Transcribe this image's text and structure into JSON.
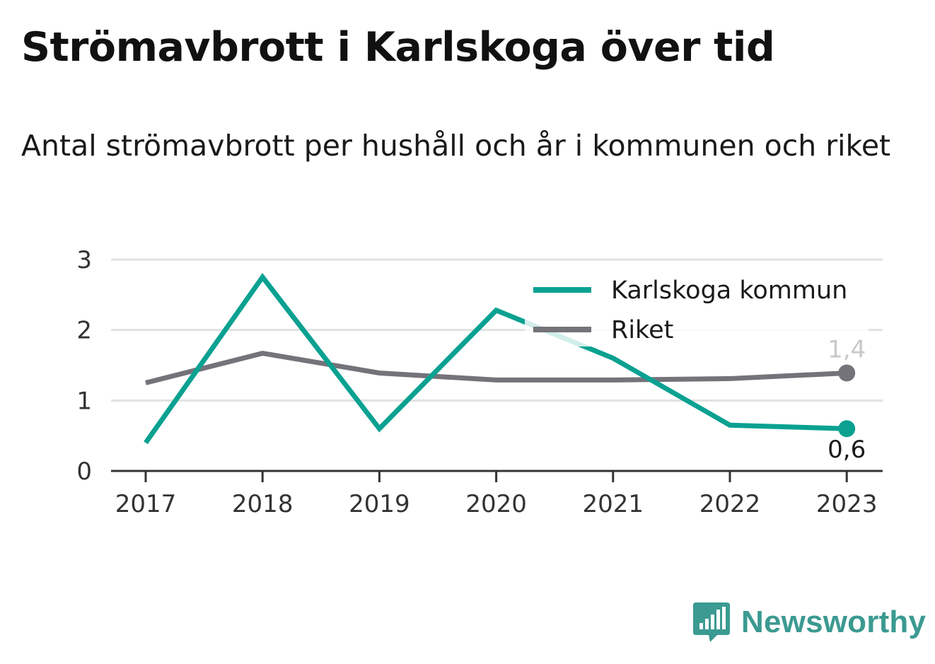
{
  "title": "Strömavbrott i Karlskoga över tid",
  "subtitle": "Antal strömavbrott per hushåll och år i kommunen och riket",
  "brand": "Newsworthy",
  "colors": {
    "karlskoga": "#0aa191",
    "riket": "#747379",
    "grid": "#e1e1e1",
    "axis": "#333333"
  },
  "chart_data": {
    "type": "line",
    "categories": [
      "2017",
      "2018",
      "2019",
      "2020",
      "2021",
      "2022",
      "2023"
    ],
    "ylim": [
      0,
      3
    ],
    "yticks": [
      "0",
      "1",
      "2",
      "3"
    ],
    "grid": true,
    "legend_position": "top-right",
    "series": [
      {
        "name": "Karlskoga kommun",
        "values": [
          0.4,
          2.75,
          0.6,
          2.28,
          1.6,
          0.65,
          0.6
        ],
        "end_label": "0,6"
      },
      {
        "name": "Riket",
        "values": [
          1.25,
          1.67,
          1.39,
          1.29,
          1.29,
          1.31,
          1.39
        ],
        "end_label": "1,4"
      }
    ]
  }
}
